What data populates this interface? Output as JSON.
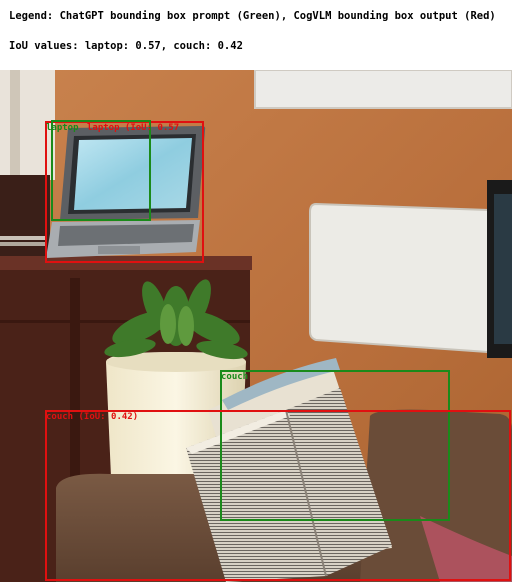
{
  "legend": {
    "line1": "Legend: ChatGPT bounding box prompt (Green), CogVLM bounding box output (Red)",
    "line2": "IoU values: laptop: 0.57, couch: 0.42"
  },
  "boxes": {
    "laptop_prompt_label": "laptop",
    "laptop_output_label": "laptop (IoU: 0.57",
    "couch_prompt_label": "couch",
    "couch_output_label": "couch (IoU: 0.42)"
  },
  "colors": {
    "prompt_box": "#1a8a1a",
    "output_box": "#e01010"
  }
}
